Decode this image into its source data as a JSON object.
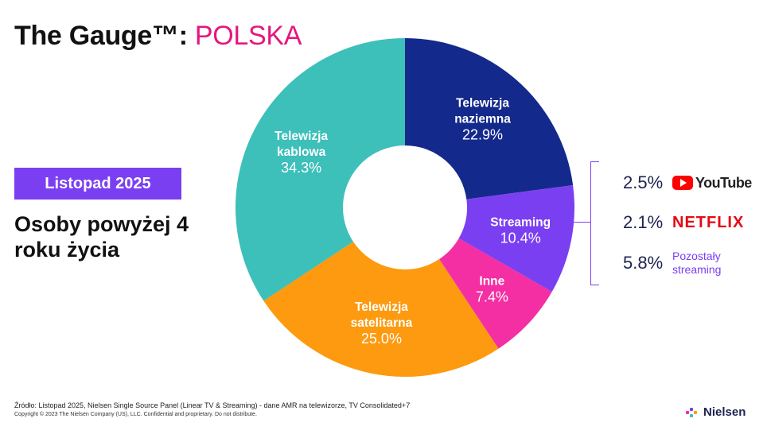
{
  "header": {
    "title_main": "The Gauge™:",
    "title_accent": "POLSKA"
  },
  "period_badge": "Listopad 2025",
  "audience": "Osoby powyżej 4 roku życia",
  "colors": {
    "teal": "#3dbfba",
    "navy": "#14298c",
    "purple": "#7b3ff2",
    "pink": "#f42ea3",
    "orange": "#fd9a0f",
    "accent": "#e5177e"
  },
  "chart_data": {
    "type": "pie",
    "subtype": "donut",
    "slices": [
      {
        "label": "Telewizja naziemna",
        "value": 22.9,
        "display": "22.9%",
        "color": "#14298c"
      },
      {
        "label": "Streaming",
        "value": 10.4,
        "display": "10.4%",
        "color": "#7b3ff2"
      },
      {
        "label": "Inne",
        "value": 7.4,
        "display": "7.4%",
        "color": "#f42ea3"
      },
      {
        "label": "Telewizja satelitarna",
        "value": 25.0,
        "display": "25.0%",
        "color": "#fd9a0f"
      },
      {
        "label": "Telewizja kablowa",
        "value": 34.3,
        "display": "34.3%",
        "color": "#3dbfba"
      }
    ],
    "streaming_breakdown": [
      {
        "value": 2.5,
        "display": "2.5%",
        "label": "YouTube"
      },
      {
        "value": 2.1,
        "display": "2.1%",
        "label": "NETFLIX"
      },
      {
        "value": 5.8,
        "display": "5.8%",
        "label": "Pozostały streaming"
      }
    ]
  },
  "footer": {
    "source": "Źródło: Listopad 2025, Nielsen Single Source Panel (Linear TV & Streaming) - dane AMR na telewizorze, TV Consolidated+7",
    "copyright": "Copyright © 2023 The Nielsen Company (US), LLC. Confidential and proprietary. Do not distribute.",
    "logo_text": "Nielsen"
  }
}
